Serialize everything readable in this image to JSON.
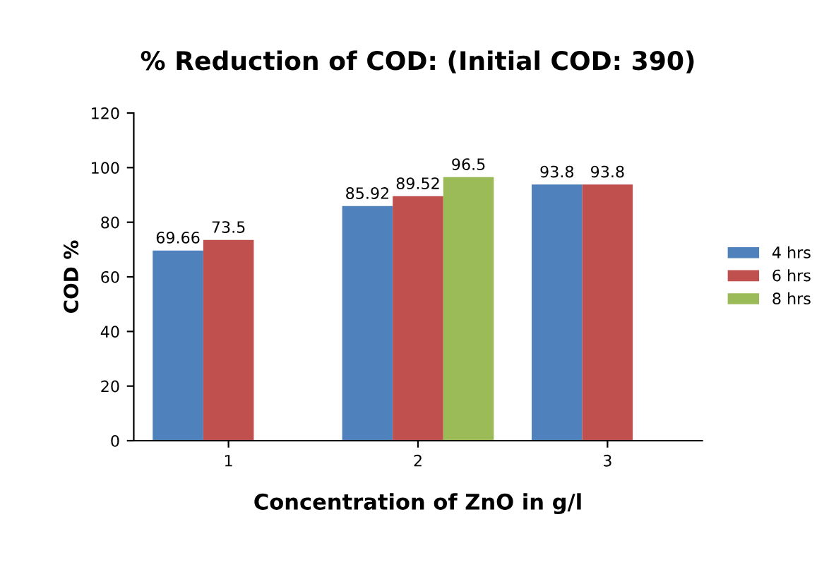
{
  "chart_data": {
    "type": "bar",
    "title": "% Reduction of COD: (Initial COD: 390)",
    "xlabel": "Concentration of ZnO in g/l",
    "ylabel": "COD %",
    "categories": [
      "1",
      "2",
      "3"
    ],
    "series": [
      {
        "name": "4 hrs",
        "color": "#4f81bd",
        "values": [
          69.66,
          85.92,
          93.8
        ]
      },
      {
        "name": "6 hrs",
        "color": "#c0504d",
        "values": [
          73.5,
          89.52,
          93.8
        ]
      },
      {
        "name": "8 hrs",
        "color": "#9bbb59",
        "values": [
          null,
          96.5,
          null
        ]
      }
    ],
    "ylim": [
      0,
      120
    ],
    "yticks": [
      0,
      20,
      40,
      60,
      80,
      100,
      120
    ],
    "data_labels": true,
    "legend": "right",
    "grid": false
  }
}
